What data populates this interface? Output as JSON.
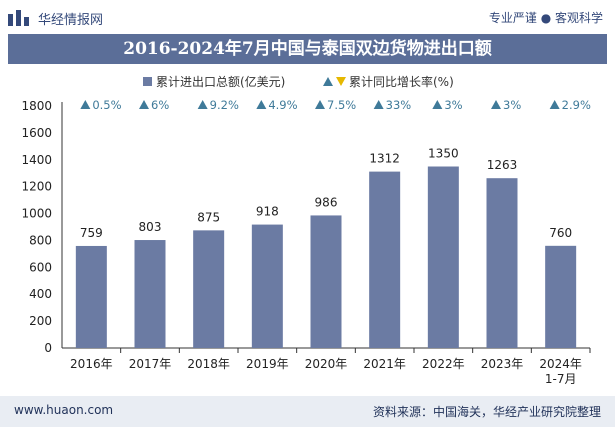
{
  "header": {
    "brand": "华经情报网",
    "tagline": "专业严谨 ● 客观科学",
    "title": "2016-2024年7月中国与泰国双边货物进出口额"
  },
  "footer": {
    "website": "www.huaon.com",
    "source": "资料来源：中国海关，华经产业研究院整理"
  },
  "colors": {
    "bar": "#6b7ba3",
    "title_bg": "#5b6e98",
    "growth_marker": "#3f7a99"
  },
  "chart_data": {
    "type": "bar",
    "categories": [
      "2016年",
      "2017年",
      "2018年",
      "2019年",
      "2020年",
      "2021年",
      "2022年",
      "2023年",
      "2024年\n1-7月"
    ],
    "series": [
      {
        "name": "累计进出口总额(亿美元)",
        "values": [
          759,
          803,
          875,
          918,
          986,
          1312,
          1350,
          1263,
          760
        ]
      },
      {
        "name": "累计同比增长率(%)",
        "values": [
          "0.5%",
          "6%",
          "9.2%",
          "4.9%",
          "7.5%",
          "33%",
          "3%",
          "3%",
          "2.9%"
        ]
      }
    ],
    "ylim": [
      0,
      1800
    ],
    "yticks": [
      0,
      200,
      400,
      600,
      800,
      1000,
      1200,
      1400,
      1600,
      1800
    ],
    "legend_position": "top-center",
    "grid": false
  }
}
